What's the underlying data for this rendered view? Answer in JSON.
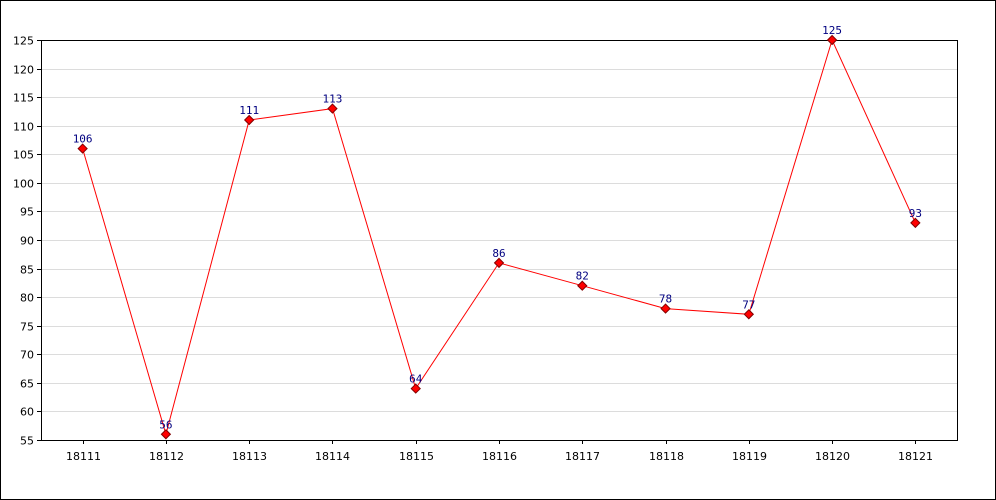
{
  "chart_data": {
    "type": "line",
    "title": "",
    "xlabel": "",
    "ylabel": "",
    "categories": [
      "18111",
      "18112",
      "18113",
      "18114",
      "18115",
      "18116",
      "18117",
      "18118",
      "18119",
      "18120",
      "18121"
    ],
    "values": [
      106,
      56,
      111,
      113,
      64,
      86,
      82,
      78,
      77,
      125,
      93
    ],
    "ylim": [
      55,
      125
    ],
    "yticks": [
      55,
      60,
      65,
      70,
      75,
      80,
      85,
      90,
      95,
      100,
      105,
      110,
      115,
      120,
      125
    ],
    "grid": true,
    "legend": "none",
    "data_labels": true,
    "colors": {
      "line": "#ff0000",
      "marker_fill": "#ff0000",
      "marker_stroke": "#800000",
      "grid": "#dcdcdc",
      "axis": "#000000",
      "data_label": "#000080"
    }
  }
}
